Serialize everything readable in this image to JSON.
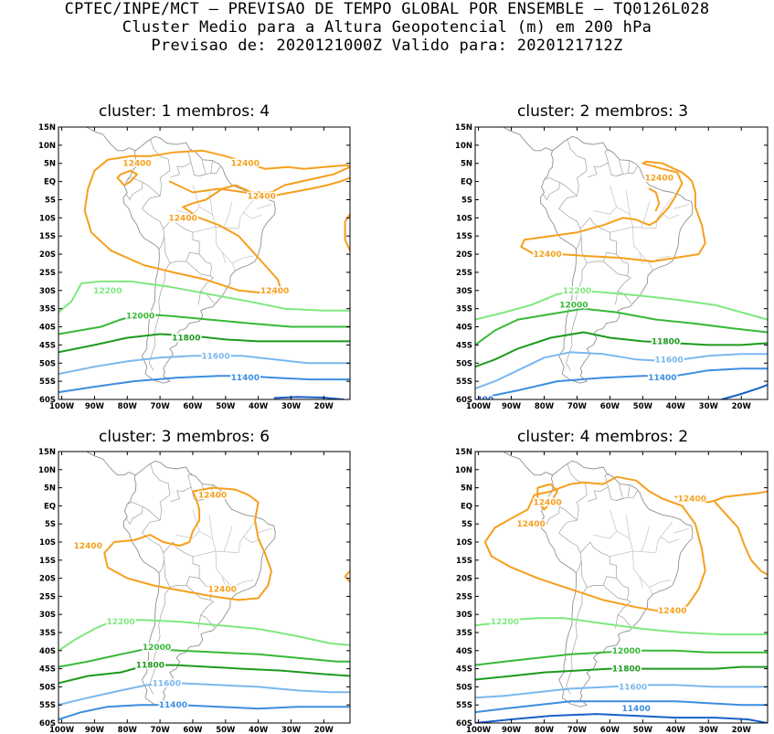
{
  "header": {
    "line1": "CPTEC/INPE/MCT — PREVISAO DE TEMPO GLOBAL POR ENSEMBLE — TQ0126L028",
    "line2": "Cluster Medio para a Altura Geopotencial (m) em 200 hPa",
    "line3": "Previsao de: 2020121000Z   Valido para: 2020121712Z"
  },
  "axes": {
    "lat_labels": [
      "15N",
      "10N",
      "5N",
      "EQ",
      "5S",
      "10S",
      "15S",
      "20S",
      "25S",
      "30S",
      "35S",
      "40S",
      "45S",
      "50S",
      "55S",
      "60S"
    ],
    "lon_labels": [
      "100W",
      "90W",
      "80W",
      "70W",
      "60W",
      "50W",
      "40W",
      "30W",
      "20W"
    ]
  },
  "colors": {
    "c12400": "#f5a01e",
    "c12200": "#7fe87f",
    "c12000": "#37b837",
    "c11800": "#1e9a1e",
    "c11600": "#7ab8ee",
    "c11400": "#3c8ee0",
    "c11200": "#1a5fc8",
    "coast": "#909090"
  },
  "panels": [
    {
      "title": "cluster: 1   membros: 4",
      "labels": [
        {
          "text": "12400",
          "lon": -77,
          "lat": 5,
          "color": "c12400"
        },
        {
          "text": "12400",
          "lon": -44,
          "lat": 5,
          "color": "c12400"
        },
        {
          "text": "12400",
          "lon": -39,
          "lat": -4,
          "color": "c12400"
        },
        {
          "text": "12400",
          "lon": -63,
          "lat": -10,
          "color": "c12400"
        },
        {
          "text": "12400",
          "lon": -35,
          "lat": -30,
          "color": "c12400"
        },
        {
          "text": "12200",
          "lon": -86,
          "lat": -30,
          "color": "c12200"
        },
        {
          "text": "12000",
          "lon": -76,
          "lat": -37,
          "color": "c12000"
        },
        {
          "text": "11800",
          "lon": -62,
          "lat": -43,
          "color": "c11800"
        },
        {
          "text": "11600",
          "lon": -53,
          "lat": -48,
          "color": "c11600"
        },
        {
          "text": "11400",
          "lon": -44,
          "lat": -54,
          "color": "c11400"
        }
      ]
    },
    {
      "title": "cluster: 2   membros: 3",
      "labels": [
        {
          "text": "12400",
          "lon": -45,
          "lat": 1,
          "color": "c12400"
        },
        {
          "text": "12400",
          "lon": -79,
          "lat": -20,
          "color": "c12400"
        },
        {
          "text": "12200",
          "lon": -70,
          "lat": -30,
          "color": "c12200"
        },
        {
          "text": "12000",
          "lon": -71,
          "lat": -34,
          "color": "c12000"
        },
        {
          "text": "11800",
          "lon": -43,
          "lat": -44,
          "color": "c11800"
        },
        {
          "text": "11600",
          "lon": -42,
          "lat": -49,
          "color": "c11600"
        },
        {
          "text": "11400",
          "lon": -44,
          "lat": -54,
          "color": "c11400"
        },
        {
          "text": "400",
          "lon": -98,
          "lat": -60,
          "color": "c11200"
        }
      ]
    },
    {
      "title": "cluster: 3   membros: 6",
      "labels": [
        {
          "text": "12400",
          "lon": -54,
          "lat": 3,
          "color": "c12400"
        },
        {
          "text": "12400",
          "lon": -92,
          "lat": -11,
          "color": "c12400"
        },
        {
          "text": "12400",
          "lon": -51,
          "lat": -23,
          "color": "c12400"
        },
        {
          "text": "12200",
          "lon": -82,
          "lat": -32,
          "color": "c12200"
        },
        {
          "text": "12000",
          "lon": -71,
          "lat": -39,
          "color": "c12000"
        },
        {
          "text": "11800",
          "lon": -73,
          "lat": -44,
          "color": "c11800"
        },
        {
          "text": "11600",
          "lon": -68,
          "lat": -49,
          "color": "c11600"
        },
        {
          "text": "11400",
          "lon": -66,
          "lat": -55,
          "color": "c11400"
        }
      ]
    },
    {
      "title": "cluster: 4   membros: 2",
      "labels": [
        {
          "text": "12400",
          "lon": -79,
          "lat": 1,
          "color": "c12400"
        },
        {
          "text": "12400",
          "lon": -35,
          "lat": 2,
          "color": "c12400"
        },
        {
          "text": "12400",
          "lon": -84,
          "lat": -5,
          "color": "c12400"
        },
        {
          "text": "12400",
          "lon": -41,
          "lat": -29,
          "color": "c12400"
        },
        {
          "text": "12200",
          "lon": -92,
          "lat": -32,
          "color": "c12200"
        },
        {
          "text": "12000",
          "lon": -55,
          "lat": -40,
          "color": "c12000"
        },
        {
          "text": "11800",
          "lon": -55,
          "lat": -45,
          "color": "c11800"
        },
        {
          "text": "11600",
          "lon": -53,
          "lat": -50,
          "color": "c11600"
        },
        {
          "text": "11400",
          "lon": -52,
          "lat": -56,
          "color": "c11400"
        }
      ]
    }
  ]
}
